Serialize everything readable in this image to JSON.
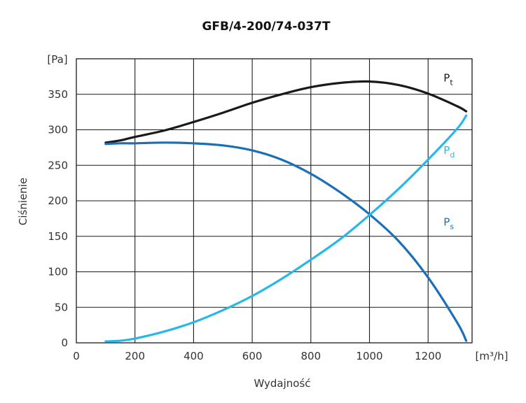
{
  "chart_data": {
    "type": "line",
    "title": "GFB/4-200/74-037T",
    "xlabel": "Wydajność",
    "ylabel": "Ciśnienie",
    "x_unit": "[m³/h]",
    "y_unit": "[Pa]",
    "xlim": [
      0,
      1350
    ],
    "ylim": [
      0,
      400
    ],
    "x_ticks": [
      0,
      200,
      400,
      600,
      800,
      1000,
      1200
    ],
    "y_ticks": [
      0,
      50,
      100,
      150,
      200,
      250,
      300,
      350
    ],
    "grid": true,
    "series": [
      {
        "name": "Pt",
        "label_main": "P",
        "label_sub": "t",
        "color": "#1a1a1a",
        "x": [
          100,
          150,
          200,
          300,
          400,
          500,
          600,
          700,
          800,
          900,
          1000,
          1100,
          1200,
          1300,
          1330
        ],
        "y": [
          282,
          285,
          290,
          299,
          311,
          324,
          338,
          350,
          360,
          366,
          368,
          363,
          351,
          333,
          326
        ]
      },
      {
        "name": "Ps",
        "label_main": "P",
        "label_sub": "s",
        "color": "#1a6fb8",
        "x": [
          100,
          150,
          200,
          300,
          400,
          500,
          600,
          700,
          800,
          900,
          1000,
          1100,
          1200,
          1300,
          1330
        ],
        "y": [
          280,
          281,
          281,
          282,
          281,
          278,
          271,
          258,
          238,
          212,
          181,
          143,
          92,
          28,
          3
        ]
      },
      {
        "name": "Pd",
        "label_main": "P",
        "label_sub": "d",
        "color": "#29b7ea",
        "x": [
          100,
          150,
          200,
          300,
          400,
          500,
          600,
          700,
          800,
          900,
          1000,
          1100,
          1200,
          1300,
          1330
        ],
        "y": [
          2,
          3,
          6,
          16,
          29,
          46,
          66,
          90,
          117,
          146,
          180,
          217,
          258,
          302,
          320
        ]
      }
    ]
  }
}
